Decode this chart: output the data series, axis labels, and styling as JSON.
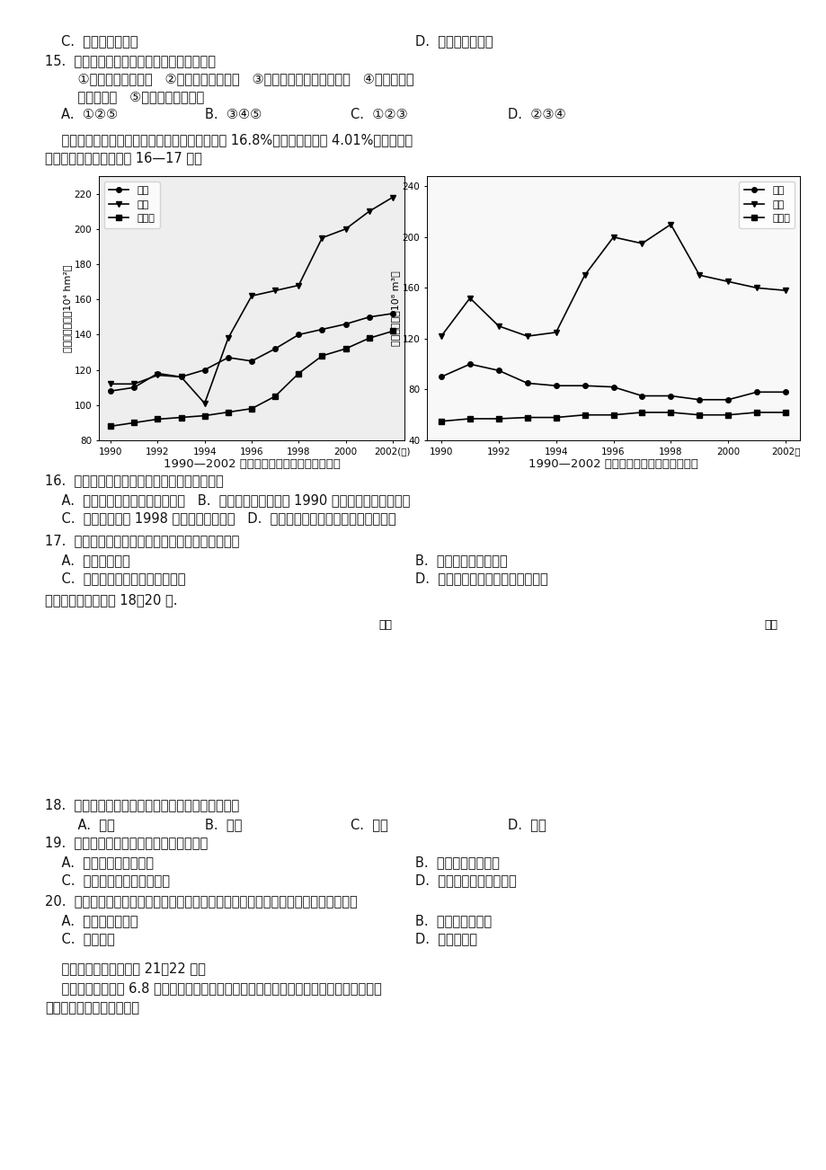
{
  "page_bg": "#ffffff",
  "line1_left": "C.  海水的堆积作用",
  "line1_right": "D.  河流的堆积作用",
  "q15_stem": "15.  近年来，黄河口湿地增长趋缓的原因是：",
  "q15_line1": "    ①潮流搬运能力增强   ②渤海下沉迅速增快   ③小浪底枢纽工程蓄水拦沙   ④黄河下游段",
  "q15_line2": "    取水量增加   ⑤中游生态有所恢复",
  "q15_a": "A.  ①②⑤",
  "q15_b": "B.  ③④⑤",
  "q15_c": "C.  ①②③",
  "q15_d": "D.  ②③④",
  "intro1": "    东北三省是我国重要的商品粮基地，耕地占全国 16.8%。水资源占全国 4.01%。读下面两",
  "intro2": "幅图，结合相关知识回答 16—17 题。",
  "chart1_ylabel": "有效灌溉面积（10⁴ hm²）",
  "chart1_xtick_labels": [
    "1990",
    "1992",
    "1994",
    "1996",
    "1998",
    "2000",
    "2002(年)"
  ],
  "chart1_yticks": [
    80,
    100,
    120,
    140,
    160,
    180,
    200,
    220
  ],
  "chart1_ylim": [
    80,
    230
  ],
  "chart1_years": [
    1990,
    1991,
    1992,
    1993,
    1994,
    1995,
    1996,
    1997,
    1998,
    1999,
    2000,
    2001,
    2002
  ],
  "chart1_liaoning": [
    108,
    110,
    118,
    116,
    120,
    127,
    125,
    132,
    140,
    143,
    146,
    150,
    152
  ],
  "chart1_jilin": [
    112,
    112,
    117,
    116,
    101,
    138,
    162,
    165,
    168,
    195,
    200,
    210,
    218
  ],
  "chart1_heilong": [
    88,
    90,
    92,
    93,
    94,
    96,
    98,
    105,
    118,
    128,
    132,
    138,
    142
  ],
  "chart1_title": "1990—2002 年东北三省有效灌溉面积变化图",
  "chart2_ylabel": "灌溉用水量（10⁸ m³）",
  "chart2_xtick_labels": [
    "1990",
    "1992",
    "1994",
    "1996",
    "1998",
    "2000",
    "2002年"
  ],
  "chart2_yticks": [
    40,
    80,
    120,
    160,
    200,
    240
  ],
  "chart2_ylim": [
    40,
    248
  ],
  "chart2_years": [
    1990,
    1991,
    1992,
    1993,
    1994,
    1995,
    1996,
    1997,
    1998,
    1999,
    2000,
    2001,
    2002
  ],
  "chart2_liaoning": [
    90,
    100,
    95,
    85,
    83,
    83,
    82,
    75,
    75,
    72,
    72,
    78,
    78
  ],
  "chart2_jilin": [
    122,
    152,
    130,
    122,
    125,
    170,
    200,
    195,
    210,
    170,
    165,
    160,
    158
  ],
  "chart2_heilong": [
    55,
    57,
    57,
    58,
    58,
    60,
    60,
    62,
    62,
    60,
    60,
    62,
    62
  ],
  "chart2_title": "1990—2002 年东北三省灌溉用水量变化图",
  "q16_stem": "16.  有关东北三省农业灌溉状况描述正确的是：",
  "q16_ab": "    A.  农田灌溉用水量都呈增长态势   B.  农田有效灌溉面积自 1990 年以来呈快速增长态势",
  "q16_cd": "    C.  灌溉用水量自 1998 年以来呈减少趋势   D.  有效灌溉面积与灌溉用水量同步增长",
  "q17_stem": "17.  有关东北三省水土资源利用状况描述正确的是：",
  "q17_a": "    A.  水土资源丰富",
  "q17_b": "B.  耕地资源集中在东部",
  "q17_c": "    C.  水土资源呈现西多东少的特点",
  "q17_d": "D.  耕地资源丰富，水资源相对短缺",
  "maps_intro": "读下面两幅图，回答 18～20 题.",
  "q18_stem": "18.  甲区中的主要农作物种类在我国的最大产区是：",
  "q18_a": "    A.  广东",
  "q18_b": "B.  吉林",
  "q18_c": "C.  新疆",
  "q18_d": "D.  陕西",
  "q19_stem": "19.  美国甲、丙农业带的农业区位优势有：",
  "q19_a": "    A.  地势平坦，土壤肥沃",
  "q19_b": "B.  不使用化肥、农药",
  "q19_c": "    C.  气候温和湿润，降水丰富",
  "q19_d": "D.  人口稀疏，劳动力不足",
  "q20_stem": "20.  图二地区为我国最大的商品粮基地，与珠江三角洲等地区相比较，其优势条件是：",
  "q20_a": "    A.  单位面积产量高",
  "q20_b": "B.  人均耕地面积大",
  "q20_c": "    C.  交通发达",
  "q20_d": "D.  水热条件好",
  "mat_intro": "    读下面两段材料，回答 21～22 题。",
  "mat1": "    我国水能蕴藏量约 6.8 亿千瓦，主要分布在西南地区。我国电力工业主要有水电和火电两",
  "mat2": "种形式，其中火电是主体。"
}
